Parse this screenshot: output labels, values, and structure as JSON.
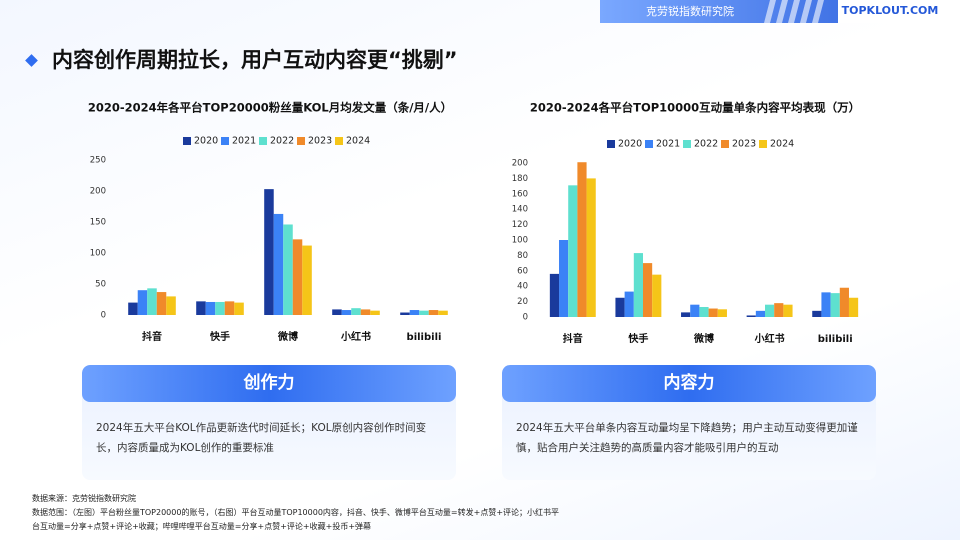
{
  "header": {
    "org": "克劳锐指数研究院",
    "logo": "TOPKLOUT.COM"
  },
  "title": "内容创作周期拉长，用户互动内容更“挑剔”",
  "chart_data": [
    {
      "type": "bar",
      "title": "2020-2024年各平台TOP20000粉丝量KOL月均发文量（条/月/人）",
      "categories": [
        "抖音",
        "快手",
        "微博",
        "小红书",
        "bilibili"
      ],
      "series": [
        {
          "name": "2020",
          "color": "#1a3a9c",
          "values": [
            20,
            22,
            203,
            9,
            4
          ]
        },
        {
          "name": "2021",
          "color": "#3b82f6",
          "values": [
            40,
            21,
            163,
            8,
            8
          ]
        },
        {
          "name": "2022",
          "color": "#5ee0cf",
          "values": [
            43,
            21,
            146,
            11,
            7
          ]
        },
        {
          "name": "2023",
          "color": "#f08a2a",
          "values": [
            37,
            22,
            122,
            9,
            8
          ]
        },
        {
          "name": "2024",
          "color": "#f5c518",
          "values": [
            30,
            20,
            112,
            7,
            7
          ]
        }
      ],
      "ylim": [
        0,
        250
      ],
      "yticks": [
        0,
        50,
        100,
        150,
        200,
        250
      ]
    },
    {
      "type": "bar",
      "title": "2020-2024各平台TOP10000互动量单条内容平均表现（万）",
      "categories": [
        "抖音",
        "快手",
        "微博",
        "小红书",
        "bilibili"
      ],
      "series": [
        {
          "name": "2020",
          "color": "#1a3a9c",
          "values": [
            56,
            25,
            6,
            2,
            8
          ]
        },
        {
          "name": "2021",
          "color": "#3b82f6",
          "values": [
            100,
            33,
            16,
            8,
            32
          ]
        },
        {
          "name": "2022",
          "color": "#5ee0cf",
          "values": [
            171,
            83,
            13,
            16,
            31
          ]
        },
        {
          "name": "2023",
          "color": "#f08a2a",
          "values": [
            201,
            70,
            11,
            18,
            38
          ]
        },
        {
          "name": "2024",
          "color": "#f5c518",
          "values": [
            180,
            55,
            10,
            16,
            25
          ]
        }
      ],
      "ylim": [
        0,
        200
      ],
      "yticks": [
        0,
        20,
        40,
        60,
        80,
        100,
        120,
        140,
        160,
        180,
        200
      ]
    }
  ],
  "cards": [
    {
      "title": "创作力",
      "text": "2024年五大平台KOL作品更新迭代时间延长；KOL原创内容创作时间变长，内容质量成为KOL创作的重要标准"
    },
    {
      "title": "内容力",
      "text": "2024年五大平台单条内容互动量均呈下降趋势；用户主动互动变得更加谨慎，贴合用户关注趋势的高质量内容才能吸引用户的互动"
    }
  ],
  "footnotes": [
    "数据来源：克劳锐指数研究院",
    "数据范围：（左图）平台粉丝量TOP20000的账号，（右图）平台互动量TOP10000内容，抖音、快手、微博平台互动量=转发+点赞+评论；小红书平",
    "台互动量=分享+点赞+评论+收藏；哔哩哔哩平台互动量=分享+点赞+评论+收藏+投币+弹幕"
  ]
}
